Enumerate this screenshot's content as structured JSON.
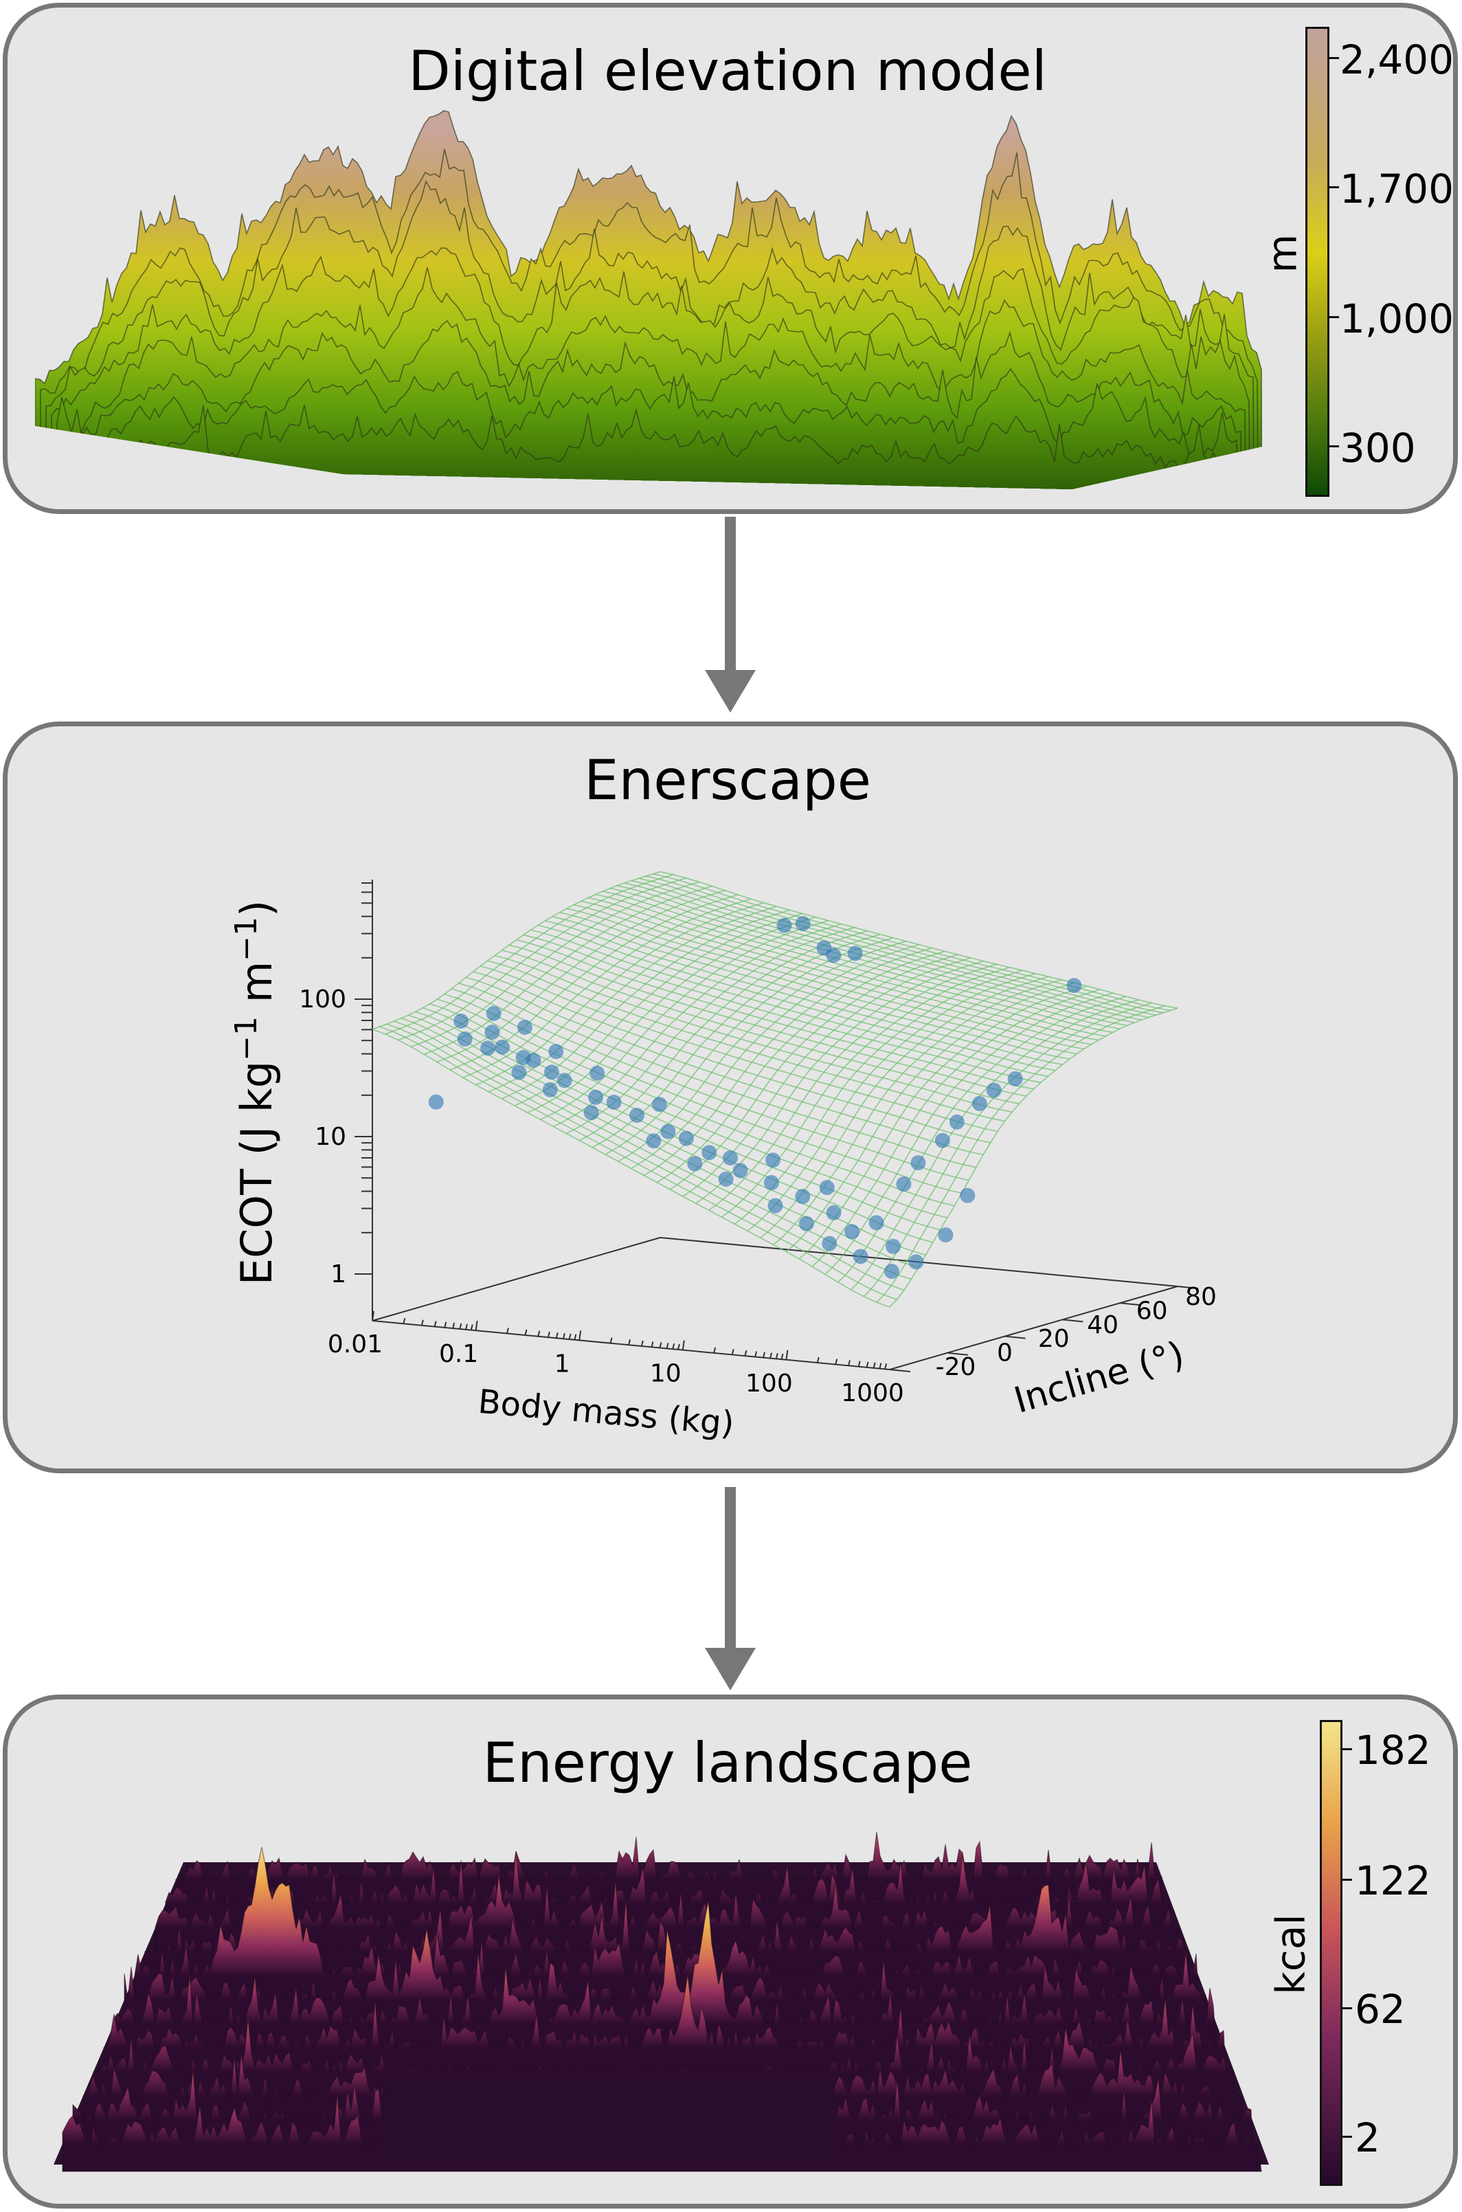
{
  "panels": {
    "dem": {
      "title": "Digital elevation model",
      "colorbar": {
        "unit": "m",
        "ticks": [
          "2,400",
          "1,700",
          "1,000",
          "300"
        ],
        "colors": [
          "#c2a39c",
          "#c8aa5c",
          "#dccf18",
          "#9a9f12",
          "#4e7a10",
          "#0e4a05"
        ]
      }
    },
    "enerscape": {
      "title": "Enerscape"
    },
    "energy": {
      "title": "Energy landscape",
      "colorbar": {
        "unit": "kcal",
        "ticks": [
          "182",
          "122",
          "62",
          "2"
        ],
        "colors": [
          "#f3e58a",
          "#e9a24a",
          "#c8555a",
          "#7e2a5c",
          "#25092c"
        ]
      }
    }
  },
  "colors": {
    "panel_bg": "#e6e6e6",
    "panel_border": "#777777",
    "arrow": "#777777",
    "mesh": "#6fbf6f",
    "points": "#2f77b4"
  },
  "chart_data": {
    "type": "surface+scatter",
    "y_label": {
      "main": "ECOT (J kg",
      "sup1": "−1",
      "mid": " m",
      "sup2": "−1",
      "end": ")"
    },
    "x_label": "Body mass (kg)",
    "z_label": "Incline (°)",
    "y_axis": {
      "scale": "log",
      "ticks": [
        1,
        10,
        100
      ],
      "tick_labels": [
        "1",
        "10",
        "100"
      ],
      "range": [
        0.46,
        720
      ]
    },
    "x_axis": {
      "scale": "log",
      "ticks": [
        0.01,
        0.1,
        1,
        10,
        100,
        1000
      ],
      "tick_labels": [
        "0.01",
        "0.1",
        "1",
        "10",
        "100",
        "1000"
      ],
      "range": [
        0.01,
        1000
      ]
    },
    "z_axis": {
      "ticks": [
        -20,
        0,
        20,
        40,
        60,
        80
      ],
      "tick_labels": [
        "-20",
        "0",
        "20",
        "40",
        "60",
        "80"
      ],
      "range": [
        -20,
        80
      ]
    },
    "surface": {
      "masses": [
        0.01,
        0.1,
        1,
        10,
        100,
        1000
      ],
      "inclines": [
        -20,
        0,
        20,
        40,
        60,
        80
      ],
      "ecot": [
        [
          60.3,
          70,
          109,
          161,
          200,
          210
        ],
        [
          28,
          36,
          67,
          108,
          139,
          147
        ],
        [
          13,
          19.4,
          44,
          77,
          102,
          108
        ],
        [
          6,
          11,
          31,
          56,
          76,
          81
        ],
        [
          2.8,
          6.8,
          22.8,
          42.8,
          58.8,
          62.8
        ],
        [
          1.3,
          4.4,
          16.8,
          32.8,
          45.2,
          48.3
        ]
      ]
    },
    "points": [
      [
        0.02,
        0,
        55
      ],
      [
        0.03,
        -5,
        45
      ],
      [
        0.03,
        5,
        60
      ],
      [
        0.04,
        0,
        48
      ],
      [
        0.05,
        -5,
        40
      ],
      [
        0.05,
        0,
        38
      ],
      [
        0.06,
        5,
        50
      ],
      [
        0.08,
        0,
        33
      ],
      [
        0.1,
        -5,
        28
      ],
      [
        0.1,
        0,
        32
      ],
      [
        0.12,
        5,
        35
      ],
      [
        0.15,
        0,
        27
      ],
      [
        0.2,
        -5,
        22
      ],
      [
        0.2,
        0,
        24
      ],
      [
        0.3,
        5,
        26
      ],
      [
        0.4,
        0,
        19
      ],
      [
        0.5,
        -5,
        16
      ],
      [
        0.6,
        0,
        18
      ],
      [
        1,
        0,
        15
      ],
      [
        1.2,
        5,
        17
      ],
      [
        2,
        -5,
        11
      ],
      [
        2,
        0,
        12
      ],
      [
        3,
        0,
        11
      ],
      [
        5,
        -5,
        8
      ],
      [
        5,
        0,
        9
      ],
      [
        8,
        0,
        8.5
      ],
      [
        10,
        -5,
        6.5
      ],
      [
        10,
        0,
        7
      ],
      [
        15,
        5,
        8
      ],
      [
        20,
        0,
        6
      ],
      [
        30,
        -5,
        4.5
      ],
      [
        40,
        0,
        5
      ],
      [
        50,
        5,
        5.5
      ],
      [
        60,
        -5,
        3.5
      ],
      [
        80,
        0,
        4
      ],
      [
        100,
        -5,
        2.6
      ],
      [
        120,
        0,
        3
      ],
      [
        150,
        5,
        3.3
      ],
      [
        200,
        -5,
        2.2
      ],
      [
        300,
        0,
        2.5
      ],
      [
        400,
        -5,
        1.8
      ],
      [
        500,
        0,
        2.0
      ],
      [
        0.03,
        -15,
        18
      ],
      [
        200,
        10,
        6
      ],
      [
        200,
        15,
        8
      ],
      [
        250,
        20,
        11
      ],
      [
        250,
        25,
        14
      ],
      [
        300,
        30,
        18
      ],
      [
        300,
        35,
        21
      ],
      [
        350,
        40,
        24
      ],
      [
        600,
        15,
        5
      ],
      [
        700,
        5,
        3
      ],
      [
        0.3,
        70,
        125
      ],
      [
        0.4,
        72,
        128
      ],
      [
        1,
        65,
        100
      ],
      [
        1.5,
        62,
        95
      ],
      [
        2,
        65,
        96
      ],
      [
        100,
        80,
        60
      ]
    ]
  }
}
